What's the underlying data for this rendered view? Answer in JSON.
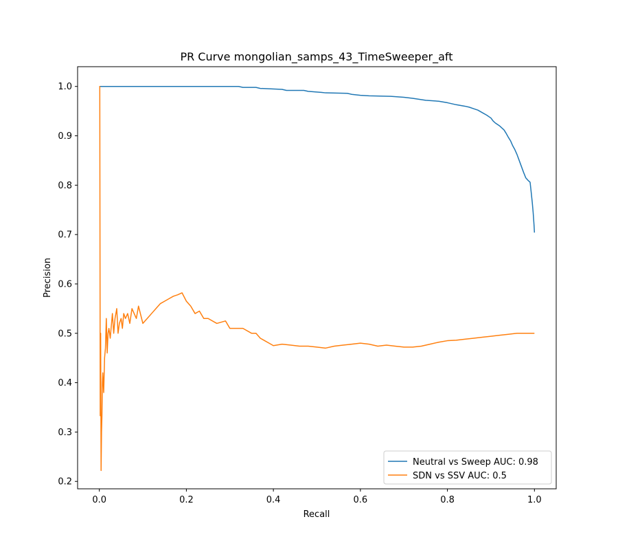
{
  "chart_data": {
    "type": "line",
    "title": "PR Curve mongolian_samps_43_TimeSweeper_aft",
    "xlabel": "Recall",
    "ylabel": "Precision",
    "xlim": [
      -0.05,
      1.05
    ],
    "ylim": [
      0.185,
      1.04
    ],
    "xticks": [
      0.0,
      0.2,
      0.4,
      0.6,
      0.8,
      1.0
    ],
    "xtick_labels": [
      "0.0",
      "0.2",
      "0.4",
      "0.6",
      "0.8",
      "1.0"
    ],
    "yticks": [
      0.2,
      0.3,
      0.4,
      0.5,
      0.6,
      0.7,
      0.8,
      0.9,
      1.0
    ],
    "ytick_labels": [
      "0.2",
      "0.3",
      "0.4",
      "0.5",
      "0.6",
      "0.7",
      "0.8",
      "0.9",
      "1.0"
    ],
    "grid": false,
    "legend_position": "lower-right",
    "series": [
      {
        "name": "Neutral vs Sweep AUC: 0.98",
        "color": "#1f77b4",
        "x": [
          0.0,
          0.0,
          0.005,
          0.05,
          0.1,
          0.2,
          0.3,
          0.32,
          0.33,
          0.36,
          0.37,
          0.42,
          0.43,
          0.47,
          0.48,
          0.51,
          0.52,
          0.57,
          0.58,
          0.6,
          0.62,
          0.67,
          0.7,
          0.72,
          0.75,
          0.78,
          0.8,
          0.82,
          0.84,
          0.85,
          0.86,
          0.87,
          0.88,
          0.89,
          0.9,
          0.905,
          0.91,
          0.92,
          0.93,
          0.935,
          0.94,
          0.945,
          0.95,
          0.955,
          0.96,
          0.965,
          0.97,
          0.975,
          0.98,
          0.985,
          0.99,
          0.992,
          0.995,
          0.997,
          0.999,
          1.0
        ],
        "y": [
          1.0,
          1.0,
          1.0,
          1.0,
          1.0,
          1.0,
          1.0,
          1.0,
          0.998,
          0.998,
          0.996,
          0.994,
          0.992,
          0.992,
          0.99,
          0.988,
          0.987,
          0.986,
          0.984,
          0.982,
          0.981,
          0.98,
          0.978,
          0.976,
          0.972,
          0.97,
          0.967,
          0.963,
          0.96,
          0.958,
          0.955,
          0.952,
          0.947,
          0.942,
          0.936,
          0.93,
          0.926,
          0.92,
          0.912,
          0.905,
          0.897,
          0.89,
          0.88,
          0.872,
          0.862,
          0.85,
          0.838,
          0.826,
          0.815,
          0.81,
          0.806,
          0.79,
          0.765,
          0.745,
          0.72,
          0.704
        ]
      },
      {
        "name": "SDN vs SSV AUC: 0.5",
        "color": "#ff7f0e",
        "x": [
          0.0,
          0.001,
          0.002,
          0.003,
          0.004,
          0.005,
          0.006,
          0.007,
          0.008,
          0.01,
          0.012,
          0.014,
          0.016,
          0.018,
          0.02,
          0.022,
          0.025,
          0.028,
          0.03,
          0.033,
          0.036,
          0.04,
          0.043,
          0.046,
          0.05,
          0.053,
          0.056,
          0.06,
          0.065,
          0.07,
          0.075,
          0.08,
          0.085,
          0.09,
          0.1,
          0.11,
          0.12,
          0.13,
          0.14,
          0.15,
          0.16,
          0.17,
          0.18,
          0.19,
          0.2,
          0.21,
          0.22,
          0.23,
          0.24,
          0.25,
          0.27,
          0.29,
          0.3,
          0.31,
          0.33,
          0.35,
          0.36,
          0.37,
          0.38,
          0.39,
          0.4,
          0.42,
          0.44,
          0.46,
          0.48,
          0.5,
          0.52,
          0.54,
          0.56,
          0.58,
          0.6,
          0.62,
          0.64,
          0.66,
          0.68,
          0.7,
          0.72,
          0.74,
          0.76,
          0.78,
          0.8,
          0.82,
          0.84,
          0.86,
          0.88,
          0.9,
          0.92,
          0.94,
          0.96,
          0.98,
          1.0
        ],
        "y": [
          1.0,
          1.0,
          0.333,
          0.5,
          0.222,
          0.3,
          0.333,
          0.4,
          0.42,
          0.38,
          0.45,
          0.47,
          0.53,
          0.46,
          0.5,
          0.51,
          0.49,
          0.52,
          0.54,
          0.5,
          0.53,
          0.55,
          0.5,
          0.52,
          0.53,
          0.51,
          0.54,
          0.53,
          0.54,
          0.52,
          0.55,
          0.54,
          0.53,
          0.555,
          0.52,
          0.53,
          0.54,
          0.55,
          0.56,
          0.565,
          0.57,
          0.575,
          0.578,
          0.582,
          0.565,
          0.555,
          0.54,
          0.545,
          0.53,
          0.53,
          0.52,
          0.525,
          0.51,
          0.51,
          0.51,
          0.5,
          0.5,
          0.49,
          0.485,
          0.48,
          0.475,
          0.478,
          0.476,
          0.474,
          0.474,
          0.472,
          0.47,
          0.474,
          0.476,
          0.478,
          0.48,
          0.478,
          0.474,
          0.476,
          0.474,
          0.472,
          0.472,
          0.474,
          0.478,
          0.482,
          0.485,
          0.486,
          0.488,
          0.49,
          0.492,
          0.494,
          0.496,
          0.498,
          0.5,
          0.5,
          0.5
        ]
      }
    ]
  }
}
